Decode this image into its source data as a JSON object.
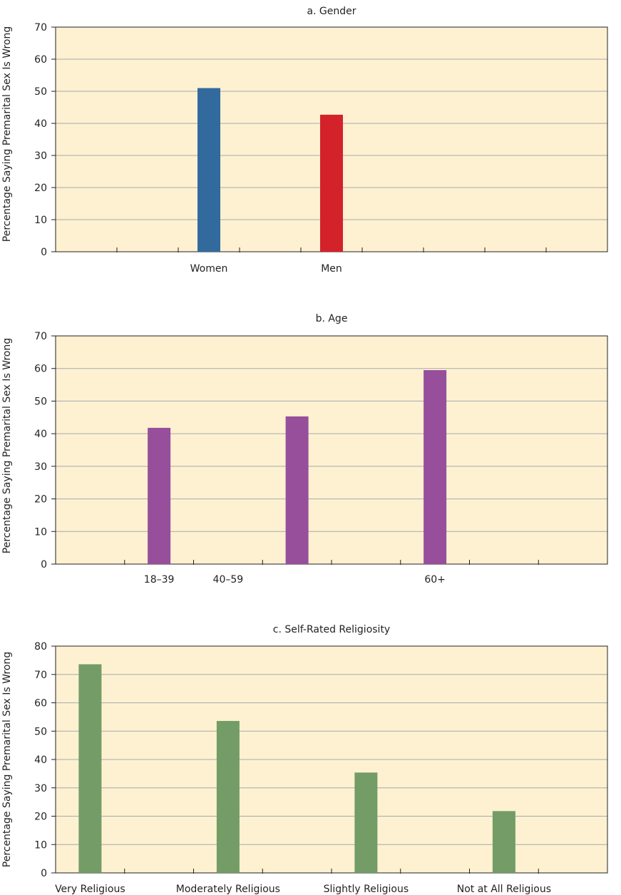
{
  "chart_data": [
    {
      "type": "bar",
      "title": "a. Gender",
      "ylabel": "Percentage Saying Premarital Sex Is Wrong",
      "ylim": [
        0,
        70
      ],
      "yticks": [
        0,
        10,
        20,
        30,
        40,
        50,
        60,
        70
      ],
      "categories": [
        "Women",
        "Men"
      ],
      "values": [
        51,
        42.7
      ],
      "colors": [
        "#336a9e",
        "#d3222a"
      ],
      "grid": true
    },
    {
      "type": "bar",
      "title": "b. Age",
      "ylabel": "Percentage Saying Premarital Sex Is Wrong",
      "ylim": [
        0,
        70
      ],
      "yticks": [
        0,
        10,
        20,
        30,
        40,
        50,
        60,
        70
      ],
      "categories": [
        "18–39",
        "40–59",
        "60+"
      ],
      "values": [
        41.8,
        45.3,
        59.5
      ],
      "colors": [
        "#974f9c",
        "#974f9c",
        "#974f9c"
      ],
      "grid": true
    },
    {
      "type": "bar",
      "title": "c. Self-Rated Religiosity",
      "ylabel": "Percentage Saying Premarital Sex Is Wrong",
      "ylim": [
        0,
        80
      ],
      "yticks": [
        0,
        10,
        20,
        30,
        40,
        50,
        60,
        70,
        80
      ],
      "categories": [
        "Very Religious",
        "Moderately Religious",
        "Slightly Religious",
        "Not at All Religious"
      ],
      "values": [
        73.6,
        53.6,
        35.4,
        21.8
      ],
      "colors": [
        "#739c66",
        "#739c66",
        "#739c66",
        "#739c66"
      ],
      "grid": true
    }
  ],
  "colors": {
    "plot_background": "#fdf1d1",
    "gridline": "#a7a9ac",
    "axis": "#231f20"
  }
}
